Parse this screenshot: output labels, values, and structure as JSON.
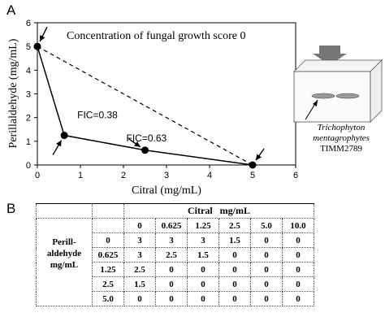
{
  "panel_a_label": "A",
  "panel_b_label": "B",
  "chart_data": {
    "type": "scatter",
    "title": "Concentration of fungal growth score 0",
    "xlabel": "Citral (mg/mL)",
    "ylabel": "Perillaldehyde (mg/mL)",
    "xlim": [
      0,
      6
    ],
    "ylim": [
      0,
      6
    ],
    "xticks": [
      0,
      1,
      2,
      3,
      4,
      5,
      6
    ],
    "yticks": [
      0,
      1,
      2,
      3,
      4,
      5,
      6
    ],
    "grid": false,
    "series": [
      {
        "values": [
          {
            "x": 0,
            "y": 5
          },
          {
            "x": 0.625,
            "y": 1.25
          },
          {
            "x": 2.5,
            "y": 0.625
          },
          {
            "x": 5,
            "y": 0
          }
        ]
      }
    ],
    "reference_line": [
      {
        "x": 0,
        "y": 5
      },
      {
        "x": 5,
        "y": 0
      }
    ],
    "annotations": [
      {
        "text": "FIC=0.38",
        "x": 0.625,
        "y": 1.25
      },
      {
        "text": "FIC=0.63",
        "x": 2.5,
        "y": 0.625
      }
    ]
  },
  "inset": {
    "organism_line1": "Trichophyton",
    "organism_line2": "mentagrophytes",
    "strain": "TIMM2789"
  },
  "table": {
    "col_group_label": "Citral   mg/mL",
    "row_group_label_1": "Perill-",
    "row_group_label_2": "aldehyde",
    "row_group_label_3": "mg/mL",
    "columns": [
      "0",
      "0.625",
      "1.25",
      "2.5",
      "5.0",
      "10.0"
    ],
    "rows": [
      {
        "label": "0",
        "cells": [
          "3",
          "3",
          "3",
          "1.5",
          "0",
          "0"
        ]
      },
      {
        "label": "0.625",
        "cells": [
          "3",
          "2.5",
          "1.5",
          "0",
          "0",
          "0"
        ]
      },
      {
        "label": "1.25",
        "cells": [
          "2.5",
          "0",
          "0",
          "0",
          "0",
          "0"
        ]
      },
      {
        "label": "2.5",
        "cells": [
          "1.5",
          "0",
          "0",
          "0",
          "0",
          "0"
        ]
      },
      {
        "label": "5.0",
        "cells": [
          "0",
          "0",
          "0",
          "0",
          "0",
          "0"
        ]
      }
    ]
  }
}
